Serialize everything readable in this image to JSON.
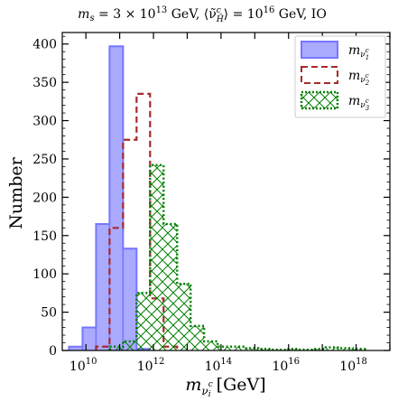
{
  "chart_data": {
    "type": "histogram",
    "title": "m_s = 3 × 10^13 GeV, ⟨ν̃^c_H̄⟩ = 10^16 GeV, IO",
    "title_parts": {
      "p1": "m",
      "p1_sub": "s",
      "p2": " = 3 × 10",
      "p2_sup": "13",
      "p3": " GeV, ⟨ν̃",
      "p3_sup": "c",
      "p3_sub": "H̄",
      "p4": "⟩ = 10",
      "p4_sup": "16",
      "p5": " GeV, IO"
    },
    "xlabel": "m_{ν_i^c} [GeV]",
    "xlabel_parts": {
      "m": "m",
      "sub": "ν",
      "subsup": "c",
      "subsub": "i",
      "unit": " [GeV]"
    },
    "ylabel": "Number",
    "x_scale": "log10",
    "xlim_exponent": [
      9.3,
      19.0
    ],
    "ylim": [
      0,
      415
    ],
    "x_ticks": [
      {
        "base": "10",
        "exp": "10",
        "value": 10
      },
      {
        "base": "10",
        "exp": "12",
        "value": 12
      },
      {
        "base": "10",
        "exp": "14",
        "value": 14
      },
      {
        "base": "10",
        "exp": "16",
        "value": 16
      },
      {
        "base": "10",
        "exp": "18",
        "value": 18
      }
    ],
    "y_ticks": [
      "0",
      "50",
      "100",
      "150",
      "200",
      "250",
      "300",
      "350",
      "400"
    ],
    "legend_position": "top-right",
    "series": [
      {
        "name": "m_{ν_1^c}",
        "legend_sub": "1",
        "style": "filled",
        "color": "#7777ff",
        "edges": [
          9.5,
          9.9,
          10.3,
          10.7,
          11.1,
          11.5,
          11.9
        ],
        "counts": [
          5,
          30,
          165,
          397,
          133,
          2
        ]
      },
      {
        "name": "m_{ν_2^c}",
        "legend_sub": "2",
        "style": "dashed",
        "color": "#a52a2a",
        "edges": [
          10.3,
          10.7,
          11.1,
          11.5,
          11.9,
          12.3,
          12.7
        ],
        "counts": [
          5,
          160,
          275,
          335,
          68,
          5
        ]
      },
      {
        "name": "m_{ν_3^c}",
        "legend_sub": "3",
        "style": "hatched-dotted",
        "color": "#008000",
        "edges": [
          10.7,
          11.1,
          11.5,
          11.9,
          12.3,
          12.7,
          13.1,
          13.5,
          13.9,
          14.3,
          14.7,
          15.1,
          15.5,
          15.9,
          16.3,
          16.7,
          17.1,
          17.5,
          17.9,
          18.3
        ],
        "counts": [
          5,
          12,
          75,
          242,
          165,
          87,
          32,
          12,
          5,
          5,
          3,
          2,
          1,
          2,
          1,
          2,
          4,
          3,
          2
        ]
      }
    ]
  }
}
